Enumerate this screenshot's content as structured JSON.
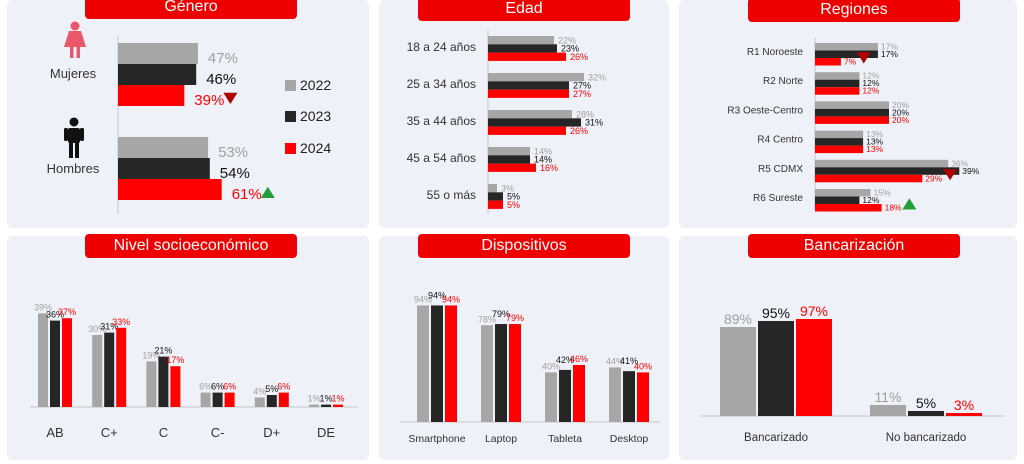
{
  "colors": {
    "y2022": "#a6a6a6",
    "y2023": "#262626",
    "y2024": "#ff0000",
    "up": "#1f9e3a",
    "down": "#b00000",
    "title_bg": "#ee0000"
  },
  "legend": [
    "2022",
    "2023",
    "2024"
  ],
  "chart_data": [
    {
      "id": "genero",
      "type": "bar",
      "orientation": "horizontal",
      "title": "Género",
      "categories": [
        "Mujeres",
        "Hombres"
      ],
      "series": [
        {
          "name": "2022",
          "values": [
            47,
            53
          ],
          "labels": [
            "47%",
            "53%"
          ]
        },
        {
          "name": "2023",
          "values": [
            46,
            54
          ],
          "labels": [
            "46%",
            "54%"
          ]
        },
        {
          "name": "2024",
          "values": [
            39,
            61
          ],
          "labels": [
            "39%",
            "61%"
          ]
        }
      ],
      "trend": [
        "down",
        "up"
      ]
    },
    {
      "id": "edad",
      "type": "bar",
      "orientation": "horizontal",
      "title": "Edad",
      "categories": [
        "18 a 24 años",
        "25 a 34 años",
        "35 a 44 años",
        "45 a 54 años",
        "55 o más"
      ],
      "series": [
        {
          "name": "2022",
          "values": [
            22,
            32,
            28,
            14,
            3
          ],
          "labels": [
            "22%",
            "32%",
            "28%",
            "14%",
            "3%"
          ]
        },
        {
          "name": "2023",
          "values": [
            23,
            27,
            31,
            14,
            5
          ],
          "labels": [
            "23%",
            "27%",
            "31%",
            "14%",
            "5%"
          ]
        },
        {
          "name": "2024",
          "values": [
            26,
            27,
            26,
            16,
            5
          ],
          "labels": [
            "26%",
            "27%",
            "26%",
            "16%",
            "5%"
          ]
        }
      ]
    },
    {
      "id": "regiones",
      "type": "bar",
      "orientation": "horizontal",
      "title": "Regiones",
      "categories": [
        "R1 Noroeste",
        "R2 Norte",
        "R3 Oeste-Centro",
        "R4 Centro",
        "R5 CDMX",
        "R6 Sureste"
      ],
      "series": [
        {
          "name": "2022",
          "values": [
            17,
            12,
            20,
            13,
            36,
            15
          ],
          "labels": [
            "17%",
            "12%",
            "20%",
            "13%",
            "36%",
            "15%"
          ]
        },
        {
          "name": "2023",
          "values": [
            17,
            12,
            20,
            13,
            39,
            12
          ],
          "labels": [
            "17%",
            "12%",
            "20%",
            "13%",
            "39%",
            "12%"
          ]
        },
        {
          "name": "2024",
          "values": [
            7,
            12,
            20,
            13,
            29,
            18
          ],
          "labels": [
            "7%",
            "12%",
            "20%",
            "13%",
            "29%",
            "18%"
          ]
        }
      ],
      "trend": [
        "down",
        "",
        "",
        "",
        "down",
        "up"
      ]
    },
    {
      "id": "nse",
      "type": "bar",
      "orientation": "vertical",
      "title": "Nivel socioeconómico",
      "categories": [
        "AB",
        "C+",
        "C",
        "C-",
        "D+",
        "DE"
      ],
      "series": [
        {
          "name": "2022",
          "values": [
            39,
            30,
            19,
            6,
            4,
            1
          ],
          "labels": [
            "39%",
            "30%",
            "19%",
            "6%",
            "4%",
            "1%"
          ]
        },
        {
          "name": "2023",
          "values": [
            36,
            31,
            21,
            6,
            5,
            1
          ],
          "labels": [
            "36%",
            "31%",
            "21%",
            "6%",
            "5%",
            "1%"
          ]
        },
        {
          "name": "2024",
          "values": [
            37,
            33,
            17,
            6,
            6,
            1
          ],
          "labels": [
            "37%",
            "33%",
            "17%",
            "6%",
            "6%",
            "1%"
          ]
        }
      ]
    },
    {
      "id": "dispositivos",
      "type": "bar",
      "orientation": "vertical",
      "title": "Dispositivos",
      "categories": [
        "Smartphone",
        "Laptop",
        "Tableta",
        "Desktop"
      ],
      "series": [
        {
          "name": "2022",
          "values": [
            94,
            78,
            40,
            44
          ],
          "labels": [
            "94%",
            "78%",
            "40%",
            "44%"
          ]
        },
        {
          "name": "2023",
          "values": [
            94,
            79,
            42,
            41
          ],
          "labels": [
            "94%",
            "79%",
            "42%",
            "41%"
          ]
        },
        {
          "name": "2024",
          "values": [
            94,
            79,
            46,
            40
          ],
          "labels": [
            "94%",
            "79%",
            "46%",
            "40%"
          ]
        }
      ]
    },
    {
      "id": "bancarizacion",
      "type": "bar",
      "orientation": "vertical",
      "title": "Bancarización",
      "categories": [
        "Bancarizado",
        "No bancarizado"
      ],
      "series": [
        {
          "name": "2022",
          "values": [
            89,
            11
          ],
          "labels": [
            "89%",
            "11%"
          ]
        },
        {
          "name": "2023",
          "values": [
            95,
            5
          ],
          "labels": [
            "95%",
            "5%"
          ]
        },
        {
          "name": "2024",
          "values": [
            97,
            3
          ],
          "labels": [
            "97%",
            "3%"
          ]
        }
      ]
    }
  ]
}
